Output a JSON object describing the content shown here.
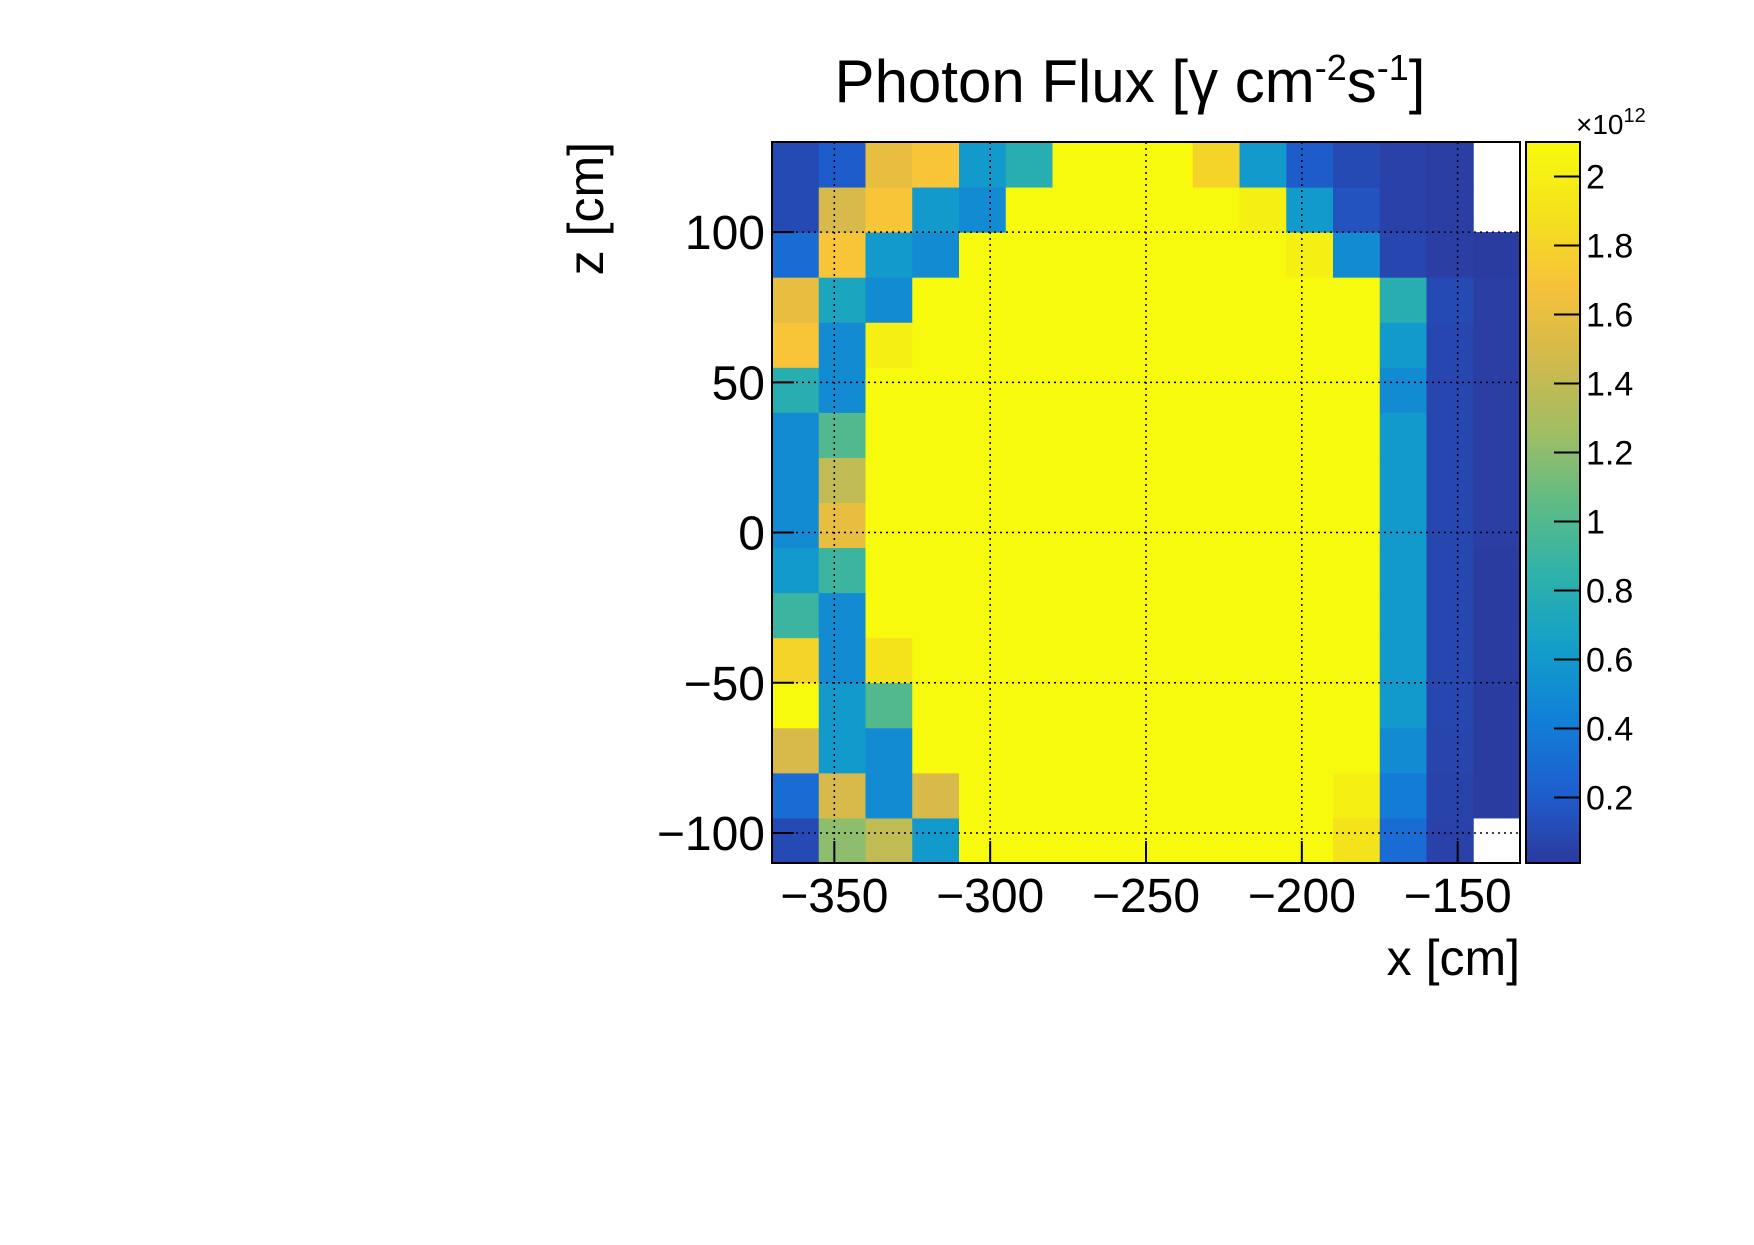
{
  "chart_data": {
    "type": "heatmap",
    "title_parts": [
      "Photon Flux [γ cm",
      "-2",
      "s",
      "-1",
      "]"
    ],
    "x_label": "x [cm]",
    "y_label": "z [cm]",
    "xlim": [
      -370,
      -130
    ],
    "ylim": [
      -110,
      130
    ],
    "xticks": [
      {
        "value": -350,
        "label": "−350"
      },
      {
        "value": -300,
        "label": "−300"
      },
      {
        "value": -250,
        "label": "−250"
      },
      {
        "value": -200,
        "label": "−200"
      },
      {
        "value": -150,
        "label": "−150"
      }
    ],
    "yticks": [
      {
        "value": -100,
        "label": "−100"
      },
      {
        "value": -50,
        "label": "−50"
      },
      0,
      50,
      100
    ],
    "grid": true,
    "x_bins": [
      -370,
      -355,
      -340,
      -325,
      -310,
      -295,
      -280,
      -265,
      -250,
      -235,
      -220,
      -205,
      -190,
      -175,
      -160,
      -145,
      -130
    ],
    "y_bins": [
      -110,
      -95,
      -80,
      -65,
      -50,
      -35,
      -20,
      -5,
      10,
      25,
      40,
      55,
      70,
      85,
      100,
      115,
      130
    ],
    "values": [
      [
        0.1,
        1.2,
        1.4,
        0.6,
        2.1,
        2.1,
        2.1,
        2.1,
        2.1,
        2.1,
        2.1,
        2.1,
        1.9,
        0.3,
        0.05,
        null
      ],
      [
        0.3,
        1.5,
        0.5,
        1.5,
        2.1,
        2.1,
        2.1,
        2.1,
        2.1,
        2.1,
        2.1,
        2.1,
        2.0,
        0.4,
        0.06,
        0.02
      ],
      [
        1.5,
        0.6,
        0.5,
        2.1,
        2.1,
        2.1,
        2.1,
        2.1,
        2.1,
        2.1,
        2.1,
        2.1,
        2.1,
        0.5,
        0.07,
        0.02
      ],
      [
        2.1,
        0.6,
        1.0,
        2.1,
        2.1,
        2.1,
        2.1,
        2.1,
        2.1,
        2.1,
        2.1,
        2.1,
        2.1,
        0.6,
        0.08,
        0.02
      ],
      [
        1.8,
        0.5,
        1.9,
        2.1,
        2.1,
        2.1,
        2.1,
        2.1,
        2.1,
        2.1,
        2.1,
        2.1,
        2.1,
        0.6,
        0.08,
        0.02
      ],
      [
        0.9,
        0.5,
        2.1,
        2.1,
        2.1,
        2.1,
        2.1,
        2.1,
        2.1,
        2.1,
        2.1,
        2.1,
        2.1,
        0.6,
        0.08,
        0.02
      ],
      [
        0.6,
        0.9,
        2.1,
        2.1,
        2.1,
        2.1,
        2.1,
        2.1,
        2.1,
        2.1,
        2.1,
        2.1,
        2.1,
        0.6,
        0.08,
        0.02
      ],
      [
        0.5,
        1.6,
        2.1,
        2.1,
        2.1,
        2.1,
        2.1,
        2.1,
        2.1,
        2.1,
        2.1,
        2.1,
        2.1,
        0.6,
        0.08,
        0.03
      ],
      [
        0.5,
        1.4,
        2.1,
        2.1,
        2.1,
        2.1,
        2.1,
        2.1,
        2.1,
        2.1,
        2.1,
        2.1,
        2.1,
        0.6,
        0.08,
        0.03
      ],
      [
        0.5,
        1.0,
        2.1,
        2.1,
        2.1,
        2.1,
        2.1,
        2.1,
        2.1,
        2.1,
        2.1,
        2.1,
        2.1,
        0.6,
        0.08,
        0.03
      ],
      [
        0.8,
        0.5,
        2.1,
        2.1,
        2.1,
        2.1,
        2.1,
        2.1,
        2.1,
        2.1,
        2.1,
        2.1,
        2.1,
        0.5,
        0.08,
        0.03
      ],
      [
        1.7,
        0.5,
        2.0,
        2.1,
        2.1,
        2.1,
        2.1,
        2.1,
        2.1,
        2.1,
        2.1,
        2.1,
        2.1,
        0.6,
        0.08,
        0.03
      ],
      [
        1.6,
        0.7,
        0.5,
        2.1,
        2.1,
        2.1,
        2.1,
        2.1,
        2.1,
        2.1,
        2.1,
        2.1,
        2.1,
        0.8,
        0.1,
        0.03
      ],
      [
        0.3,
        1.7,
        0.6,
        0.5,
        2.1,
        2.1,
        2.1,
        2.1,
        2.1,
        2.1,
        2.1,
        2.0,
        0.5,
        0.08,
        0.03,
        0.02
      ],
      [
        0.1,
        1.5,
        1.7,
        0.6,
        0.5,
        2.1,
        2.1,
        2.1,
        2.1,
        2.1,
        2.0,
        0.6,
        0.15,
        0.05,
        0.03,
        null
      ],
      [
        0.1,
        0.2,
        1.6,
        1.7,
        0.6,
        0.8,
        2.1,
        2.1,
        2.1,
        1.8,
        0.6,
        0.2,
        0.1,
        0.05,
        0.03,
        null
      ]
    ],
    "zlim": [
      0.01,
      2.1
    ],
    "zticks": [
      0.2,
      0.4,
      0.6,
      0.8,
      1,
      1.2,
      1.4,
      1.6,
      1.8,
      2
    ],
    "z_multiplier": "×10",
    "z_multiplier_exponent": "12",
    "palette": [
      "#2b3a9e",
      "#1e5fd0",
      "#1180d8",
      "#139fc9",
      "#2eb2a9",
      "#5fbb85",
      "#a2be62",
      "#d2b94c",
      "#f7c23a",
      "#f4e21c",
      "#f8fa0d"
    ]
  }
}
